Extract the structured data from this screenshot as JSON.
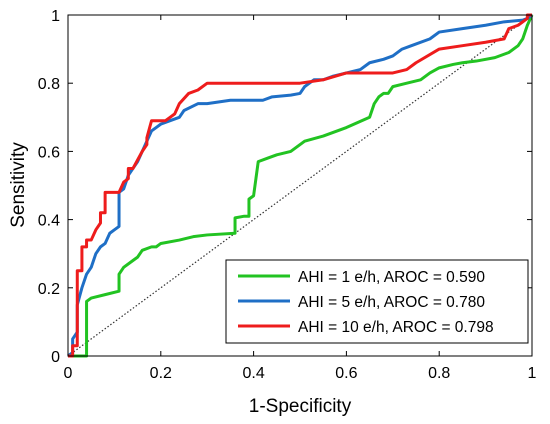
{
  "chart_data": {
    "type": "line",
    "title": "",
    "xlabel": "1-Specificity",
    "ylabel": "Sensitivity",
    "xlim": [
      0,
      1
    ],
    "ylim": [
      0,
      1
    ],
    "x_ticks": [
      "0",
      "0.2",
      "0.4",
      "0.6",
      "0.8",
      "1"
    ],
    "y_ticks": [
      "0",
      "0.2",
      "0.4",
      "0.6",
      "0.8",
      "1"
    ],
    "grid": false,
    "legend_position": "bottom-right",
    "reference_line": {
      "style": "dotted",
      "color": "#333333",
      "from": [
        0,
        0
      ],
      "to": [
        1,
        1
      ]
    },
    "series": [
      {
        "name": "AHI = 1 e/h, AROC = 0.590",
        "color": "#22c322",
        "points": [
          [
            0,
            0
          ],
          [
            0.04,
            0
          ],
          [
            0.04,
            0.16
          ],
          [
            0.05,
            0.17
          ],
          [
            0.08,
            0.18
          ],
          [
            0.11,
            0.19
          ],
          [
            0.11,
            0.24
          ],
          [
            0.12,
            0.26
          ],
          [
            0.14,
            0.28
          ],
          [
            0.15,
            0.29
          ],
          [
            0.16,
            0.31
          ],
          [
            0.18,
            0.32
          ],
          [
            0.19,
            0.32
          ],
          [
            0.2,
            0.33
          ],
          [
            0.24,
            0.34
          ],
          [
            0.27,
            0.35
          ],
          [
            0.3,
            0.355
          ],
          [
            0.36,
            0.36
          ],
          [
            0.36,
            0.405
          ],
          [
            0.38,
            0.41
          ],
          [
            0.39,
            0.41
          ],
          [
            0.39,
            0.46
          ],
          [
            0.4,
            0.47
          ],
          [
            0.41,
            0.57
          ],
          [
            0.43,
            0.58
          ],
          [
            0.45,
            0.59
          ],
          [
            0.48,
            0.6
          ],
          [
            0.51,
            0.63
          ],
          [
            0.55,
            0.645
          ],
          [
            0.6,
            0.67
          ],
          [
            0.65,
            0.7
          ],
          [
            0.66,
            0.74
          ],
          [
            0.67,
            0.76
          ],
          [
            0.68,
            0.77
          ],
          [
            0.69,
            0.77
          ],
          [
            0.7,
            0.79
          ],
          [
            0.73,
            0.8
          ],
          [
            0.76,
            0.81
          ],
          [
            0.78,
            0.83
          ],
          [
            0.8,
            0.845
          ],
          [
            0.83,
            0.855
          ],
          [
            0.85,
            0.86
          ],
          [
            0.88,
            0.865
          ],
          [
            0.92,
            0.875
          ],
          [
            0.95,
            0.89
          ],
          [
            0.97,
            0.91
          ],
          [
            0.98,
            0.93
          ],
          [
            0.99,
            0.97
          ],
          [
            1,
            1
          ]
        ]
      },
      {
        "name": "AHI = 5 e/h, AROC = 0.780",
        "color": "#1f6fc6",
        "points": [
          [
            0,
            0
          ],
          [
            0.01,
            0.01
          ],
          [
            0.01,
            0.05
          ],
          [
            0.02,
            0.07
          ],
          [
            0.02,
            0.15
          ],
          [
            0.03,
            0.2
          ],
          [
            0.04,
            0.24
          ],
          [
            0.05,
            0.26
          ],
          [
            0.06,
            0.3
          ],
          [
            0.07,
            0.32
          ],
          [
            0.08,
            0.33
          ],
          [
            0.09,
            0.36
          ],
          [
            0.1,
            0.37
          ],
          [
            0.11,
            0.38
          ],
          [
            0.11,
            0.48
          ],
          [
            0.12,
            0.49
          ],
          [
            0.13,
            0.53
          ],
          [
            0.14,
            0.55
          ],
          [
            0.15,
            0.57
          ],
          [
            0.16,
            0.6
          ],
          [
            0.17,
            0.63
          ],
          [
            0.18,
            0.66
          ],
          [
            0.19,
            0.67
          ],
          [
            0.2,
            0.68
          ],
          [
            0.22,
            0.69
          ],
          [
            0.24,
            0.7
          ],
          [
            0.25,
            0.72
          ],
          [
            0.28,
            0.74
          ],
          [
            0.3,
            0.74
          ],
          [
            0.35,
            0.75
          ],
          [
            0.38,
            0.75
          ],
          [
            0.42,
            0.75
          ],
          [
            0.44,
            0.76
          ],
          [
            0.48,
            0.765
          ],
          [
            0.5,
            0.77
          ],
          [
            0.51,
            0.79
          ],
          [
            0.53,
            0.81
          ],
          [
            0.55,
            0.81
          ],
          [
            0.57,
            0.82
          ],
          [
            0.6,
            0.83
          ],
          [
            0.63,
            0.84
          ],
          [
            0.65,
            0.86
          ],
          [
            0.68,
            0.87
          ],
          [
            0.7,
            0.88
          ],
          [
            0.72,
            0.9
          ],
          [
            0.74,
            0.91
          ],
          [
            0.78,
            0.93
          ],
          [
            0.8,
            0.95
          ],
          [
            0.85,
            0.96
          ],
          [
            0.9,
            0.97
          ],
          [
            0.94,
            0.98
          ],
          [
            0.98,
            0.985
          ],
          [
            0.99,
            0.99
          ],
          [
            1,
            1
          ]
        ]
      },
      {
        "name": "AHI = 10 e/h, AROC = 0.798",
        "color": "#ee1c1c",
        "points": [
          [
            0,
            0
          ],
          [
            0.01,
            0
          ],
          [
            0.01,
            0.03
          ],
          [
            0.02,
            0.03
          ],
          [
            0.02,
            0.25
          ],
          [
            0.03,
            0.25
          ],
          [
            0.03,
            0.32
          ],
          [
            0.04,
            0.32
          ],
          [
            0.04,
            0.34
          ],
          [
            0.05,
            0.34
          ],
          [
            0.06,
            0.37
          ],
          [
            0.07,
            0.39
          ],
          [
            0.07,
            0.42
          ],
          [
            0.08,
            0.42
          ],
          [
            0.08,
            0.48
          ],
          [
            0.11,
            0.48
          ],
          [
            0.12,
            0.51
          ],
          [
            0.13,
            0.52
          ],
          [
            0.13,
            0.55
          ],
          [
            0.14,
            0.55
          ],
          [
            0.16,
            0.6
          ],
          [
            0.17,
            0.62
          ],
          [
            0.17,
            0.64
          ],
          [
            0.18,
            0.69
          ],
          [
            0.21,
            0.69
          ],
          [
            0.22,
            0.7
          ],
          [
            0.23,
            0.71
          ],
          [
            0.24,
            0.74
          ],
          [
            0.26,
            0.77
          ],
          [
            0.28,
            0.78
          ],
          [
            0.3,
            0.8
          ],
          [
            0.4,
            0.8
          ],
          [
            0.5,
            0.8
          ],
          [
            0.55,
            0.81
          ],
          [
            0.6,
            0.83
          ],
          [
            0.65,
            0.83
          ],
          [
            0.7,
            0.83
          ],
          [
            0.73,
            0.84
          ],
          [
            0.75,
            0.86
          ],
          [
            0.8,
            0.9
          ],
          [
            0.85,
            0.91
          ],
          [
            0.9,
            0.92
          ],
          [
            0.94,
            0.93
          ],
          [
            0.95,
            0.96
          ],
          [
            0.97,
            0.97
          ],
          [
            0.99,
            0.99
          ],
          [
            0.99,
            1
          ],
          [
            1,
            1
          ]
        ]
      }
    ]
  }
}
